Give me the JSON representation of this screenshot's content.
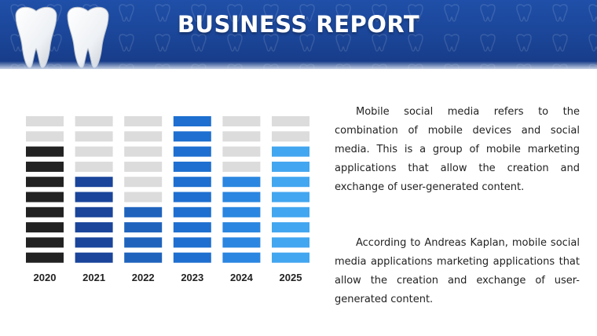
{
  "header": {
    "title": "BUSINESS REPORT"
  },
  "paragraphs": [
    "Mobile social media refers to the combination of mobile devices and social media. This is a group of mobile marketing applications that allow the creation and exchange of user-generated content.",
    "According to Andreas Kaplan, mobile social media applications marketing applications that allow the creation and exchange of user-generated content."
  ],
  "chart_data": {
    "type": "bar",
    "categories": [
      "2020",
      "2021",
      "2022",
      "2023",
      "2024",
      "2025"
    ],
    "values": [
      8,
      6,
      4,
      10,
      6,
      8
    ],
    "max_segments": 10,
    "colors": [
      "#222222",
      "#1a459b",
      "#1f63bd",
      "#1e6fd0",
      "#2a86e0",
      "#43a6f0"
    ],
    "empty_color": "#dcdcdc"
  }
}
